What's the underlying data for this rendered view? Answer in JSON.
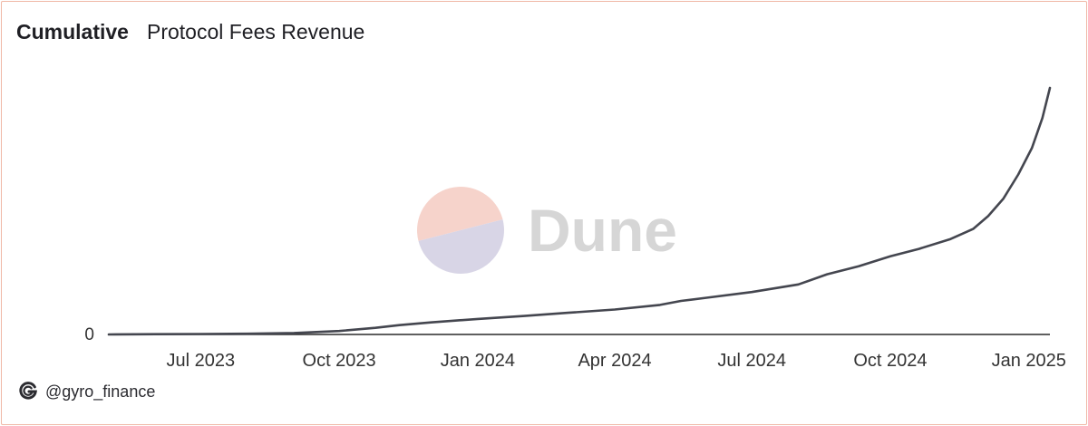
{
  "header": {
    "title": "Cumulative",
    "subtitle": "Protocol Fees Revenue"
  },
  "watermark": {
    "text": "Dune",
    "colors": {
      "top": "#f6d3cb",
      "bottom": "#d8d5e6",
      "text": "#d6d6d6"
    }
  },
  "footer": {
    "handle": "@gyro_finance",
    "logo_icon": "gyroscope-g-icon"
  },
  "colors": {
    "line": "#44464f",
    "axis": "#2a2a2a",
    "tick_text": "#333333",
    "border": "#f0b8a6"
  },
  "chart_data": {
    "type": "line",
    "title": "Cumulative",
    "subtitle": "Protocol Fees Revenue",
    "xlabel": "",
    "ylabel": "",
    "y_tick_labels": [
      "0"
    ],
    "x_tick_labels": [
      "Jul 2023",
      "Oct 2023",
      "Jan 2024",
      "Apr 2024",
      "Jul 2024",
      "Oct 2024",
      "Jan 2025"
    ],
    "x_ticks": [
      "2023-07-01",
      "2023-10-01",
      "2024-01-01",
      "2024-04-01",
      "2024-07-01",
      "2024-10-01",
      "2025-01-01"
    ],
    "xlim": [
      "2023-05-01",
      "2025-01-15"
    ],
    "ylim": [
      0,
      100
    ],
    "grid": false,
    "legend": "none",
    "series": [
      {
        "values": [
          {
            "x": "2023-05-01",
            "y": 0.0
          },
          {
            "x": "2023-06-01",
            "y": 0.1
          },
          {
            "x": "2023-07-01",
            "y": 0.2
          },
          {
            "x": "2023-08-01",
            "y": 0.3
          },
          {
            "x": "2023-09-01",
            "y": 0.6
          },
          {
            "x": "2023-10-01",
            "y": 1.4
          },
          {
            "x": "2023-10-25",
            "y": 2.7
          },
          {
            "x": "2023-11-10",
            "y": 3.8
          },
          {
            "x": "2023-12-01",
            "y": 4.9
          },
          {
            "x": "2024-01-01",
            "y": 6.3
          },
          {
            "x": "2024-02-01",
            "y": 7.5
          },
          {
            "x": "2024-03-01",
            "y": 8.8
          },
          {
            "x": "2024-04-01",
            "y": 10.1
          },
          {
            "x": "2024-05-01",
            "y": 12.0
          },
          {
            "x": "2024-05-15",
            "y": 13.6
          },
          {
            "x": "2024-06-01",
            "y": 14.9
          },
          {
            "x": "2024-07-01",
            "y": 17.2
          },
          {
            "x": "2024-08-01",
            "y": 20.3
          },
          {
            "x": "2024-08-20",
            "y": 24.4
          },
          {
            "x": "2024-09-10",
            "y": 27.7
          },
          {
            "x": "2024-10-01",
            "y": 31.7
          },
          {
            "x": "2024-10-20",
            "y": 34.7
          },
          {
            "x": "2024-11-10",
            "y": 38.7
          },
          {
            "x": "2024-11-25",
            "y": 42.8
          },
          {
            "x": "2024-12-05",
            "y": 48.0
          },
          {
            "x": "2024-12-15",
            "y": 55.0
          },
          {
            "x": "2024-12-25",
            "y": 64.9
          },
          {
            "x": "2025-01-03",
            "y": 75.6
          },
          {
            "x": "2025-01-10",
            "y": 87.8
          },
          {
            "x": "2025-01-15",
            "y": 100.0
          }
        ]
      }
    ]
  }
}
